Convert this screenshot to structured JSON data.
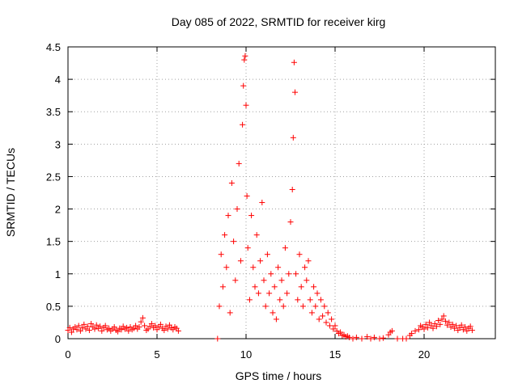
{
  "chart_data": {
    "type": "scatter",
    "title": "Day 085 of 2022, SRMTID for receiver kirg",
    "xlabel": "GPS time / hours",
    "ylabel": "SRMTID / TECUs",
    "xlim": [
      0,
      24
    ],
    "ylim": [
      0,
      4.5
    ],
    "xticks": [
      0,
      5,
      10,
      15,
      20
    ],
    "xtick_labels": [
      "0",
      "5",
      "10",
      "15",
      "20"
    ],
    "yticks": [
      0,
      0.5,
      1,
      1.5,
      2,
      2.5,
      3,
      3.5,
      4,
      4.5
    ],
    "ytick_labels": [
      "0",
      "0.5",
      "1",
      "1.5",
      "2",
      "2.5",
      "3",
      "3.5",
      "4",
      "4.5"
    ],
    "grid": true,
    "marker": "+",
    "color": "#ff0000",
    "series": [
      {
        "name": "SRMTID",
        "points": [
          [
            0.0,
            0.13
          ],
          [
            0.1,
            0.17
          ],
          [
            0.2,
            0.1
          ],
          [
            0.3,
            0.15
          ],
          [
            0.4,
            0.18
          ],
          [
            0.5,
            0.14
          ],
          [
            0.6,
            0.2
          ],
          [
            0.7,
            0.12
          ],
          [
            0.8,
            0.17
          ],
          [
            0.9,
            0.22
          ],
          [
            1.0,
            0.15
          ],
          [
            1.1,
            0.19
          ],
          [
            1.2,
            0.13
          ],
          [
            1.3,
            0.23
          ],
          [
            1.4,
            0.18
          ],
          [
            1.5,
            0.15
          ],
          [
            1.6,
            0.21
          ],
          [
            1.7,
            0.16
          ],
          [
            1.8,
            0.19
          ],
          [
            1.9,
            0.12
          ],
          [
            2.0,
            0.17
          ],
          [
            2.1,
            0.2
          ],
          [
            2.2,
            0.14
          ],
          [
            2.3,
            0.16
          ],
          [
            2.4,
            0.12
          ],
          [
            2.5,
            0.15
          ],
          [
            2.6,
            0.18
          ],
          [
            2.7,
            0.13
          ],
          [
            2.8,
            0.11
          ],
          [
            2.9,
            0.16
          ],
          [
            3.0,
            0.14
          ],
          [
            3.1,
            0.19
          ],
          [
            3.2,
            0.15
          ],
          [
            3.3,
            0.17
          ],
          [
            3.4,
            0.12
          ],
          [
            3.5,
            0.18
          ],
          [
            3.6,
            0.14
          ],
          [
            3.7,
            0.16
          ],
          [
            3.8,
            0.2
          ],
          [
            3.9,
            0.15
          ],
          [
            4.0,
            0.18
          ],
          [
            4.1,
            0.26
          ],
          [
            4.2,
            0.32
          ],
          [
            4.3,
            0.2
          ],
          [
            4.4,
            0.13
          ],
          [
            4.5,
            0.15
          ],
          [
            4.6,
            0.19
          ],
          [
            4.7,
            0.23
          ],
          [
            4.8,
            0.17
          ],
          [
            4.9,
            0.2
          ],
          [
            5.0,
            0.14
          ],
          [
            5.1,
            0.18
          ],
          [
            5.2,
            0.22
          ],
          [
            5.3,
            0.16
          ],
          [
            5.4,
            0.13
          ],
          [
            5.5,
            0.19
          ],
          [
            5.6,
            0.15
          ],
          [
            5.7,
            0.21
          ],
          [
            5.8,
            0.17
          ],
          [
            5.9,
            0.14
          ],
          [
            6.0,
            0.18
          ],
          [
            6.1,
            0.16
          ],
          [
            6.2,
            0.12
          ],
          [
            8.4,
            0.0
          ],
          [
            8.5,
            0.5
          ],
          [
            8.6,
            1.3
          ],
          [
            8.7,
            0.8
          ],
          [
            8.8,
            1.6
          ],
          [
            8.9,
            1.1
          ],
          [
            9.0,
            1.9
          ],
          [
            9.1,
            0.4
          ],
          [
            9.2,
            2.4
          ],
          [
            9.3,
            1.5
          ],
          [
            9.4,
            0.9
          ],
          [
            9.5,
            2.0
          ],
          [
            9.6,
            2.7
          ],
          [
            9.7,
            1.2
          ],
          [
            9.8,
            3.3
          ],
          [
            9.85,
            3.9
          ],
          [
            9.9,
            4.3
          ],
          [
            9.95,
            4.36
          ],
          [
            10.0,
            3.6
          ],
          [
            10.05,
            2.2
          ],
          [
            10.1,
            1.4
          ],
          [
            10.2,
            0.6
          ],
          [
            10.3,
            1.9
          ],
          [
            10.4,
            1.1
          ],
          [
            10.5,
            0.8
          ],
          [
            10.6,
            1.6
          ],
          [
            10.7,
            0.7
          ],
          [
            10.8,
            1.2
          ],
          [
            10.9,
            2.1
          ],
          [
            11.0,
            0.9
          ],
          [
            11.1,
            0.5
          ],
          [
            11.2,
            1.3
          ],
          [
            11.3,
            0.7
          ],
          [
            11.4,
            1.0
          ],
          [
            11.5,
            0.4
          ],
          [
            11.6,
            0.8
          ],
          [
            11.7,
            0.3
          ],
          [
            11.8,
            1.1
          ],
          [
            11.9,
            0.6
          ],
          [
            12.0,
            0.9
          ],
          [
            12.1,
            0.5
          ],
          [
            12.2,
            1.4
          ],
          [
            12.3,
            0.7
          ],
          [
            12.4,
            1.0
          ],
          [
            12.5,
            1.8
          ],
          [
            12.6,
            2.3
          ],
          [
            12.65,
            3.1
          ],
          [
            12.7,
            4.26
          ],
          [
            12.75,
            3.8
          ],
          [
            12.8,
            1.0
          ],
          [
            12.9,
            0.6
          ],
          [
            13.0,
            1.3
          ],
          [
            13.1,
            0.8
          ],
          [
            13.2,
            0.5
          ],
          [
            13.3,
            1.1
          ],
          [
            13.4,
            0.9
          ],
          [
            13.5,
            1.2
          ],
          [
            13.6,
            0.6
          ],
          [
            13.7,
            0.4
          ],
          [
            13.8,
            0.8
          ],
          [
            13.9,
            0.5
          ],
          [
            14.0,
            0.7
          ],
          [
            14.1,
            0.3
          ],
          [
            14.2,
            0.6
          ],
          [
            14.3,
            0.35
          ],
          [
            14.4,
            0.5
          ],
          [
            14.5,
            0.25
          ],
          [
            14.6,
            0.4
          ],
          [
            14.7,
            0.2
          ],
          [
            14.8,
            0.3
          ],
          [
            14.9,
            0.15
          ],
          [
            15.0,
            0.2
          ],
          [
            15.1,
            0.12
          ],
          [
            15.2,
            0.08
          ],
          [
            15.3,
            0.1
          ],
          [
            15.4,
            0.05
          ],
          [
            15.5,
            0.06
          ],
          [
            15.6,
            0.03
          ],
          [
            15.7,
            0.04
          ],
          [
            15.8,
            0.02
          ],
          [
            16.0,
            0.0
          ],
          [
            16.2,
            0.02
          ],
          [
            16.5,
            0.0
          ],
          [
            16.8,
            0.03
          ],
          [
            17.0,
            0.0
          ],
          [
            17.2,
            0.02
          ],
          [
            17.5,
            0.0
          ],
          [
            17.7,
            0.01
          ],
          [
            18.0,
            0.06
          ],
          [
            18.1,
            0.1
          ],
          [
            18.2,
            0.12
          ],
          [
            18.5,
            0.0
          ],
          [
            18.8,
            0.0
          ],
          [
            19.0,
            0.0
          ],
          [
            19.2,
            0.05
          ],
          [
            19.3,
            0.08
          ],
          [
            19.5,
            0.12
          ],
          [
            19.7,
            0.14
          ],
          [
            19.8,
            0.2
          ],
          [
            19.9,
            0.18
          ],
          [
            20.0,
            0.15
          ],
          [
            20.1,
            0.22
          ],
          [
            20.2,
            0.17
          ],
          [
            20.3,
            0.25
          ],
          [
            20.4,
            0.2
          ],
          [
            20.5,
            0.16
          ],
          [
            20.6,
            0.23
          ],
          [
            20.7,
            0.19
          ],
          [
            20.8,
            0.28
          ],
          [
            20.9,
            0.22
          ],
          [
            21.0,
            0.3
          ],
          [
            21.1,
            0.35
          ],
          [
            21.2,
            0.27
          ],
          [
            21.3,
            0.21
          ],
          [
            21.4,
            0.25
          ],
          [
            21.5,
            0.18
          ],
          [
            21.6,
            0.22
          ],
          [
            21.7,
            0.16
          ],
          [
            21.8,
            0.2
          ],
          [
            21.9,
            0.13
          ],
          [
            22.0,
            0.17
          ],
          [
            22.1,
            0.21
          ],
          [
            22.2,
            0.14
          ],
          [
            22.3,
            0.18
          ],
          [
            22.4,
            0.12
          ],
          [
            22.5,
            0.16
          ],
          [
            22.6,
            0.19
          ],
          [
            22.7,
            0.13
          ]
        ]
      }
    ]
  }
}
